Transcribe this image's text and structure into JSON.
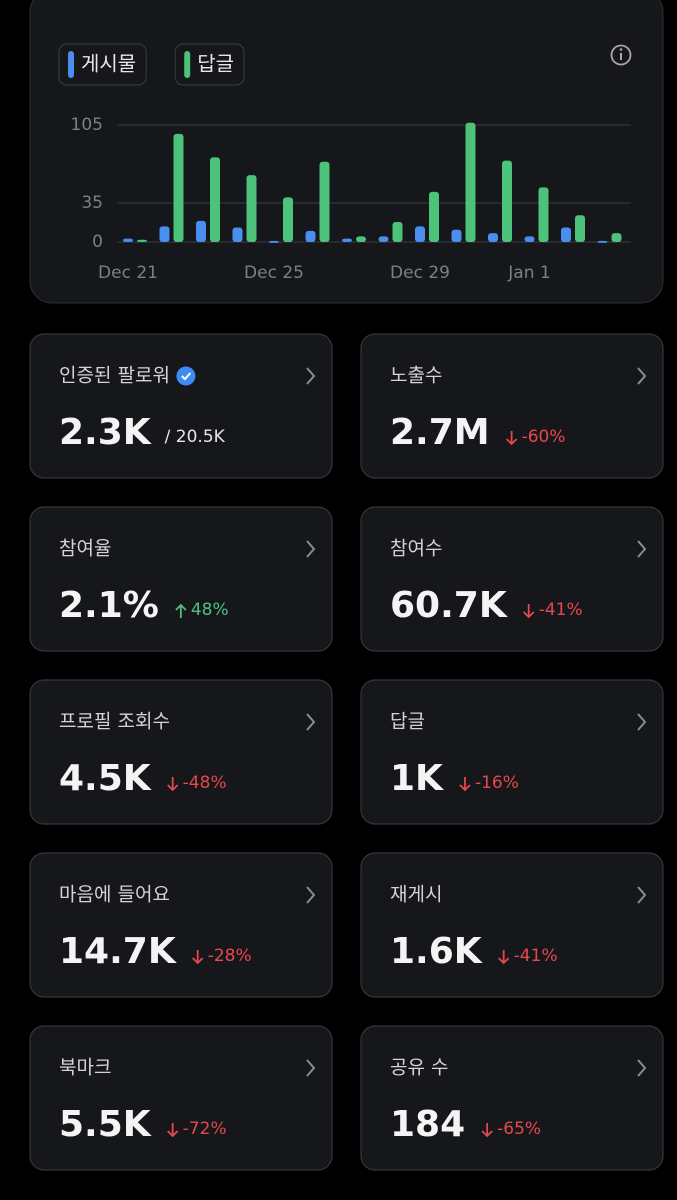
{
  "chart_data": {
    "type": "bar",
    "categories": [
      "Dec 21",
      null,
      null,
      null,
      "Dec 25",
      null,
      null,
      null,
      "Dec 29",
      null,
      null,
      "Jan 1",
      null,
      null
    ],
    "series": [
      {
        "name": "게시물",
        "color": "#4a8ff0",
        "values": [
          3,
          14,
          19,
          13,
          1,
          10,
          3,
          5,
          14,
          11,
          8,
          5,
          13,
          1
        ]
      },
      {
        "name": "답글",
        "color": "#4cc27a",
        "values": [
          2,
          97,
          76,
          60,
          40,
          72,
          5,
          18,
          45,
          107,
          73,
          49,
          24,
          8
        ]
      }
    ],
    "ylim": [
      0,
      110
    ],
    "yticks": [
      0,
      35,
      105
    ],
    "grid": true
  },
  "cards": [
    {
      "title": "인증된 팔로워",
      "value": "2.3K",
      "total": "/ 20.5K",
      "verified": true
    },
    {
      "title": "노출수",
      "value": "2.7M",
      "change": "-60%",
      "direction": "down"
    },
    {
      "title": "참여율",
      "value": "2.1%",
      "change": "48%",
      "direction": "up"
    },
    {
      "title": "참여수",
      "value": "60.7K",
      "change": "-41%",
      "direction": "down"
    },
    {
      "title": "프로필 조회수",
      "value": "4.5K",
      "change": "-48%",
      "direction": "down"
    },
    {
      "title": "답글",
      "value": "1K",
      "change": "-16%",
      "direction": "down"
    },
    {
      "title": "마음에 들어요",
      "value": "14.7K",
      "change": "-28%",
      "direction": "down"
    },
    {
      "title": "재게시",
      "value": "1.6K",
      "change": "-41%",
      "direction": "down"
    },
    {
      "title": "북마크",
      "value": "5.5K",
      "change": "-72%",
      "direction": "down"
    },
    {
      "title": "공유 수",
      "value": "184",
      "change": "-65%",
      "direction": "down"
    }
  ]
}
